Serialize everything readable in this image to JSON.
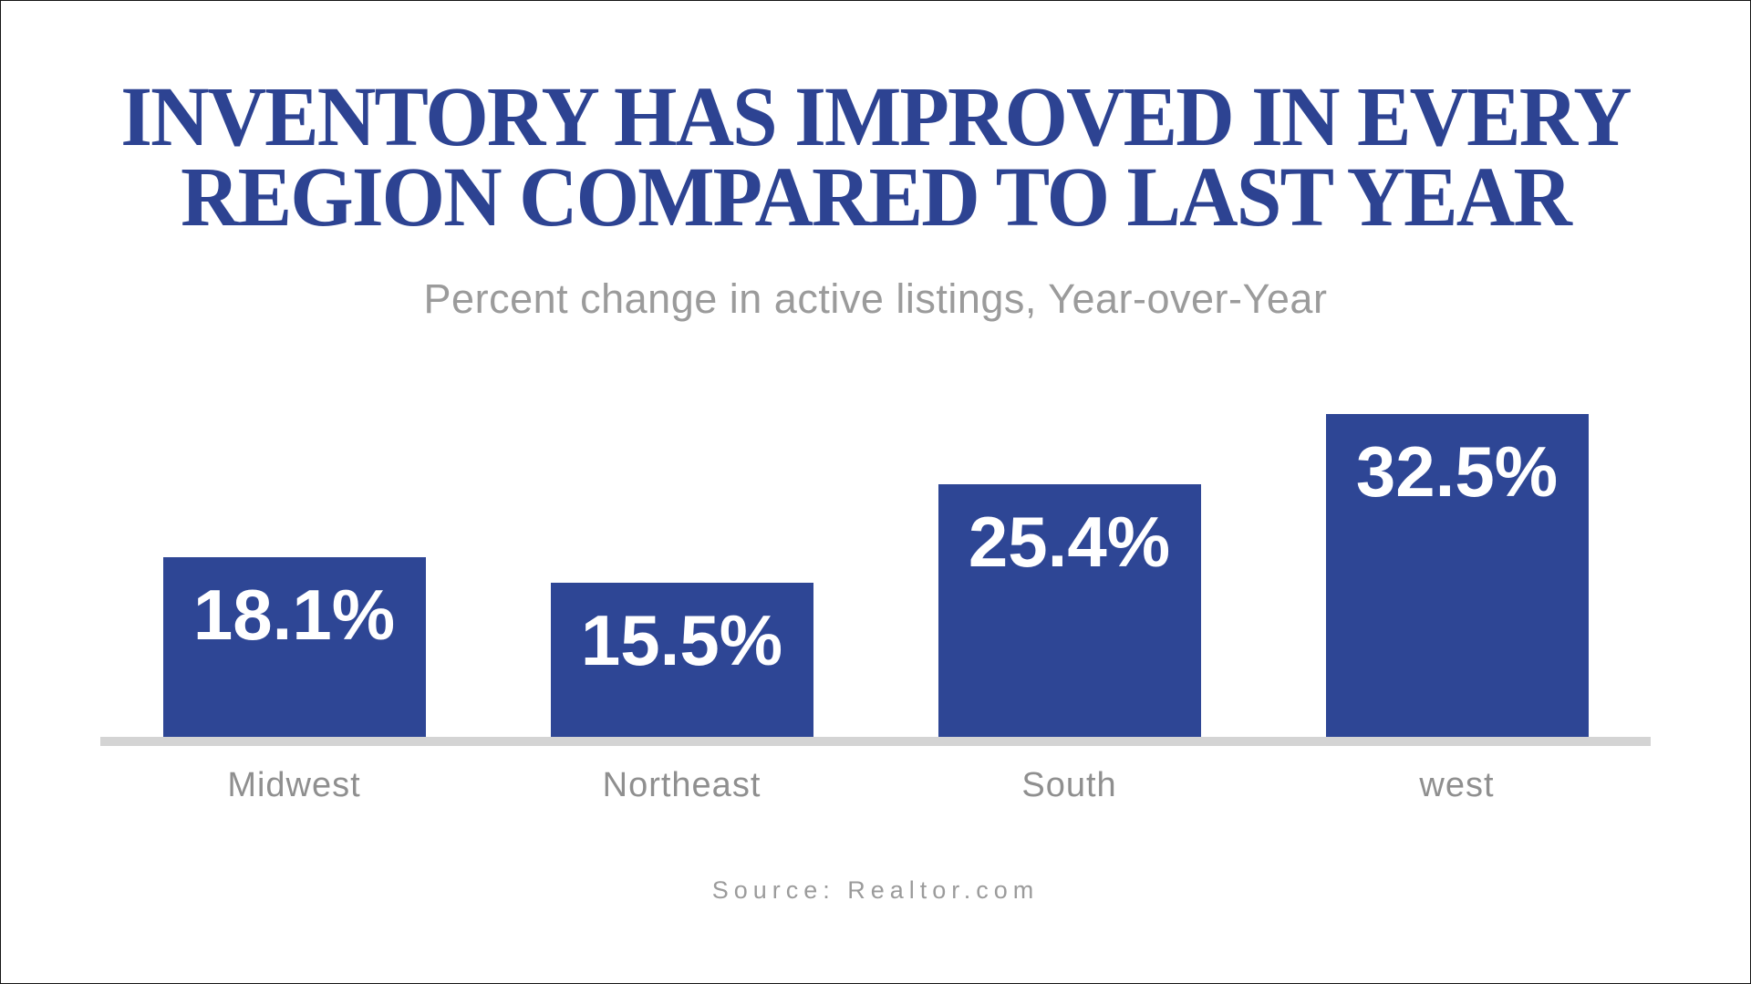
{
  "theme": {
    "accent": "#2d4392",
    "bar": "#2e4695",
    "muted": "#9b9b9b",
    "cat-text": "#8f8f8f",
    "value-text": "#ffffff",
    "axis": "#d4d4d4",
    "border": "#141414",
    "page-bg": "#ffffff"
  },
  "header": {
    "title_line1": "INVENTORY HAS IMPROVED IN EVERY",
    "title_line2": "REGION COMPARED TO LAST YEAR",
    "subtitle": "Percent change in active listings, Year-over-Year"
  },
  "chart_data": {
    "type": "bar",
    "title": "INVENTORY HAS IMPROVED IN EVERY REGION COMPARED TO LAST YEAR",
    "subtitle": "Percent change in active listings, Year-over-Year",
    "categories": [
      "Midwest",
      "Northeast",
      "South",
      "west"
    ],
    "values": [
      18.1,
      15.5,
      25.4,
      32.5
    ],
    "value_labels": [
      "18.1%",
      "15.5%",
      "25.4%",
      "32.5%"
    ],
    "ylim": [
      0,
      35
    ],
    "grid": false,
    "legend": false,
    "bar_color": "#2e4695",
    "value_label_color": "#ffffff",
    "baseline_color": "#d4d4d4",
    "category_label_color": "#8f8f8f"
  },
  "footer": {
    "source": "Source: Realtor.com"
  }
}
